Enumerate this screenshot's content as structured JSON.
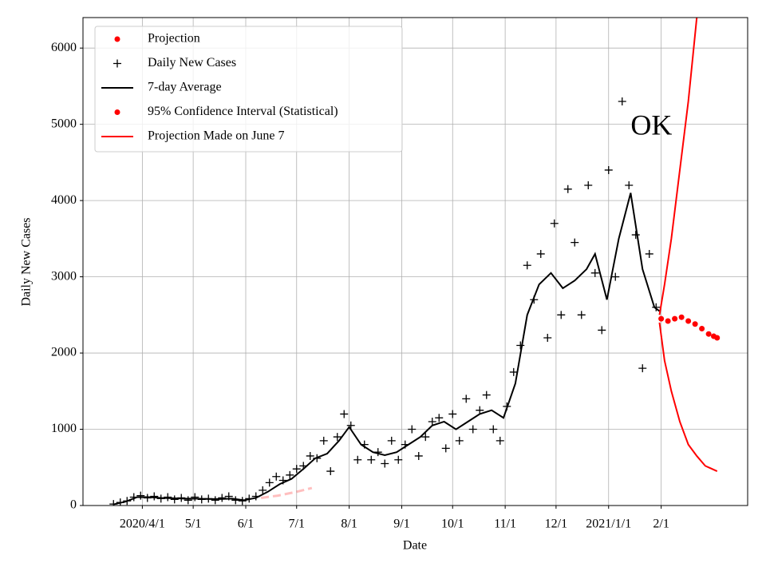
{
  "chart_data": {
    "type": "scatter-line",
    "xlabel": "Date",
    "ylabel": "Daily New Cases",
    "xlim": [
      "2020-02-26",
      "2021-03-24"
    ],
    "ylim": [
      0,
      6400
    ],
    "xticks": [
      {
        "value": "2020-04-01",
        "label": "2020/4/1"
      },
      {
        "value": "2020-05-01",
        "label": "5/1"
      },
      {
        "value": "2020-06-01",
        "label": "6/1"
      },
      {
        "value": "2020-07-01",
        "label": "7/1"
      },
      {
        "value": "2020-08-01",
        "label": "8/1"
      },
      {
        "value": "2020-09-01",
        "label": "9/1"
      },
      {
        "value": "2020-10-01",
        "label": "10/1"
      },
      {
        "value": "2020-11-01",
        "label": "11/1"
      },
      {
        "value": "2020-12-01",
        "label": "12/1"
      },
      {
        "value": "2021-01-01",
        "label": "2021/1/1"
      },
      {
        "value": "2021-02-01",
        "label": "2/1"
      }
    ],
    "yticks": [
      0,
      1000,
      2000,
      3000,
      4000,
      5000,
      6000
    ],
    "grid": true,
    "legend": "upper left",
    "annotations": [
      {
        "text": "OK",
        "x": "2021-01-14",
        "y": 4950
      }
    ],
    "series": [
      {
        "name": "Projection",
        "style": "dot",
        "color": "#ff0000",
        "x": [
          "2021-02-01",
          "2021-02-05",
          "2021-02-09",
          "2021-02-13",
          "2021-02-17",
          "2021-02-21",
          "2021-02-25",
          "2021-03-01",
          "2021-03-04",
          "2021-03-06"
        ],
        "values": [
          2450,
          2420,
          2450,
          2470,
          2420,
          2380,
          2320,
          2250,
          2220,
          2200
        ]
      },
      {
        "name": "Daily New Cases",
        "style": "plus",
        "color": "#000000",
        "x": [
          "2020-03-15",
          "2020-03-19",
          "2020-03-23",
          "2020-03-27",
          "2020-03-31",
          "2020-04-04",
          "2020-04-08",
          "2020-04-12",
          "2020-04-16",
          "2020-04-20",
          "2020-04-24",
          "2020-04-28",
          "2020-05-02",
          "2020-05-06",
          "2020-05-10",
          "2020-05-14",
          "2020-05-18",
          "2020-05-22",
          "2020-05-26",
          "2020-05-30",
          "2020-06-03",
          "2020-06-07",
          "2020-06-11",
          "2020-06-15",
          "2020-06-19",
          "2020-06-23",
          "2020-06-27",
          "2020-07-01",
          "2020-07-05",
          "2020-07-09",
          "2020-07-13",
          "2020-07-17",
          "2020-07-21",
          "2020-07-25",
          "2020-07-29",
          "2020-08-02",
          "2020-08-06",
          "2020-08-10",
          "2020-08-14",
          "2020-08-18",
          "2020-08-22",
          "2020-08-26",
          "2020-08-30",
          "2020-09-03",
          "2020-09-07",
          "2020-09-11",
          "2020-09-15",
          "2020-09-19",
          "2020-09-23",
          "2020-09-27",
          "2020-10-01",
          "2020-10-05",
          "2020-10-09",
          "2020-10-13",
          "2020-10-17",
          "2020-10-21",
          "2020-10-25",
          "2020-10-29",
          "2020-11-02",
          "2020-11-06",
          "2020-11-10",
          "2020-11-14",
          "2020-11-18",
          "2020-11-22",
          "2020-11-26",
          "2020-11-30",
          "2020-12-04",
          "2020-12-08",
          "2020-12-12",
          "2020-12-16",
          "2020-12-20",
          "2020-12-24",
          "2020-12-28",
          "2021-01-01",
          "2021-01-05",
          "2021-01-09",
          "2021-01-13",
          "2021-01-17",
          "2021-01-21",
          "2021-01-25",
          "2021-01-29"
        ],
        "values": [
          20,
          40,
          60,
          110,
          130,
          100,
          120,
          90,
          110,
          80,
          100,
          70,
          110,
          80,
          90,
          70,
          100,
          120,
          70,
          60,
          90,
          120,
          200,
          300,
          380,
          330,
          400,
          480,
          520,
          650,
          620,
          850,
          450,
          900,
          1200,
          1050,
          600,
          800,
          600,
          700,
          550,
          850,
          600,
          800,
          1000,
          650,
          900,
          1100,
          1150,
          750,
          1200,
          850,
          1400,
          1000,
          1250,
          1450,
          1000,
          850,
          1300,
          1750,
          2100,
          3150,
          2700,
          3300,
          2200,
          3700,
          2500,
          4150,
          3450,
          2500,
          4200,
          3050,
          2300,
          4400,
          3000,
          5300,
          4200,
          3550,
          1800,
          3300,
          2600
        ]
      },
      {
        "name": "7-day Average",
        "style": "line",
        "color": "#000000",
        "x": [
          "2020-03-15",
          "2020-03-22",
          "2020-03-29",
          "2020-04-05",
          "2020-04-12",
          "2020-04-19",
          "2020-04-26",
          "2020-05-03",
          "2020-05-10",
          "2020-05-17",
          "2020-05-24",
          "2020-05-31",
          "2020-06-07",
          "2020-06-14",
          "2020-06-21",
          "2020-06-28",
          "2020-07-05",
          "2020-07-12",
          "2020-07-19",
          "2020-07-26",
          "2020-08-01",
          "2020-08-08",
          "2020-08-15",
          "2020-08-22",
          "2020-08-29",
          "2020-09-05",
          "2020-09-12",
          "2020-09-19",
          "2020-09-26",
          "2020-10-03",
          "2020-10-10",
          "2020-10-17",
          "2020-10-24",
          "2020-10-31",
          "2020-11-07",
          "2020-11-14",
          "2020-11-21",
          "2020-11-28",
          "2020-12-05",
          "2020-12-12",
          "2020-12-19",
          "2020-12-24",
          "2020-12-31",
          "2021-01-07",
          "2021-01-14",
          "2021-01-21",
          "2021-01-28",
          "2021-01-31"
        ],
        "values": [
          15,
          50,
          110,
          110,
          100,
          95,
          90,
          90,
          85,
          85,
          90,
          70,
          100,
          180,
          280,
          350,
          480,
          620,
          680,
          850,
          1030,
          800,
          700,
          660,
          700,
          800,
          900,
          1050,
          1100,
          1000,
          1100,
          1200,
          1250,
          1150,
          1600,
          2500,
          2900,
          3050,
          2850,
          2950,
          3100,
          3300,
          2700,
          3500,
          4100,
          3100,
          2600,
          2550
        ]
      },
      {
        "name": "95% Confidence Interval (Statistical)",
        "style": "dot",
        "color": "#ff0000",
        "x": [
          "2021-01-31",
          "2021-02-03",
          "2021-02-07",
          "2021-02-12",
          "2021-02-17",
          "2021-02-22",
          "2021-02-27",
          "2021-03-06"
        ],
        "upper": [
          2500,
          2900,
          3500,
          4400,
          5300,
          6400,
          null,
          null
        ],
        "lower": [
          2400,
          1900,
          1500,
          1100,
          800,
          650,
          520,
          450
        ]
      },
      {
        "name": "Projection Made on June 7",
        "style": "line",
        "color": "#ff0000",
        "x": [
          "2020-06-10",
          "2020-06-20",
          "2020-07-01",
          "2020-07-10"
        ],
        "values": [
          100,
          130,
          180,
          230
        ]
      }
    ]
  }
}
